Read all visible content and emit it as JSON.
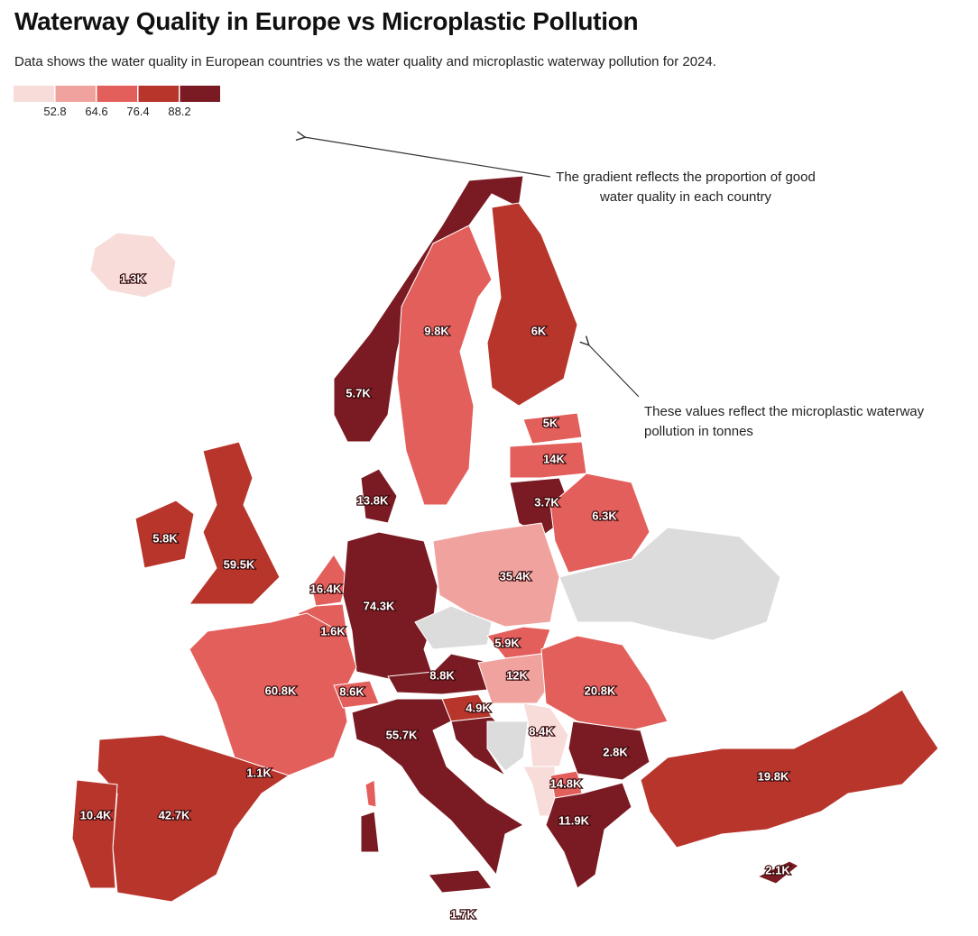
{
  "header": {
    "title": "Waterway Quality in Europe vs Microplastic Pollution",
    "subtitle": "Data shows the water quality in European countries vs the water quality and microplastic waterway pollution for 2024."
  },
  "legend": {
    "colors": [
      "#f7dcd9",
      "#f0a39e",
      "#e35f5b",
      "#b8352b",
      "#7a1a22"
    ],
    "ticks": [
      52.8,
      64.6,
      76.4,
      88.2
    ]
  },
  "annotations": [
    "The gradient reflects the proportion of good water quality in each country",
    "These values reflect the microplastic waterway pollution in tonnes"
  ],
  "labels": [
    "1.3K",
    "5.7K",
    "9.8K",
    "6K",
    "5K",
    "14K",
    "3.7K",
    "6.3K",
    "13.8K",
    "5.8K",
    "59.5K",
    "16.4K",
    "1.6K",
    "74.3K",
    "35.4K",
    "5.9K",
    "8.8K",
    "12K",
    "20.8K",
    "60.8K",
    "8.6K",
    "4.9K",
    "55.7K",
    "8.4K",
    "2.8K",
    "14.8K",
    "11.9K",
    "19.8K",
    "2.1K",
    "42.7K",
    "10.4K",
    "1.1K",
    "1.7K"
  ]
}
